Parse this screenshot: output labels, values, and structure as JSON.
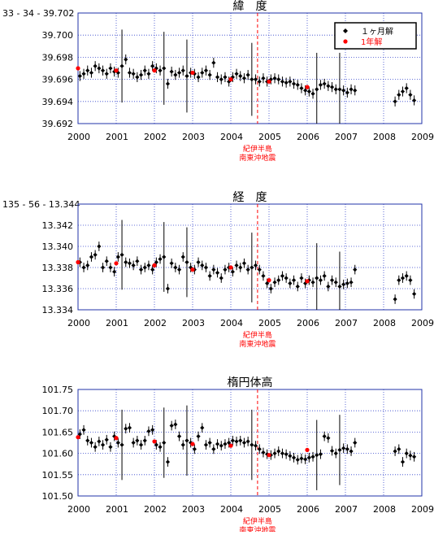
{
  "chart_data": [
    {
      "type": "scatter",
      "title": "緯　度",
      "prefix_label": "33 - 34 - 39.702",
      "x_ticks": [
        "2000",
        "2001",
        "2002",
        "2003",
        "2004",
        "2005",
        "2006",
        "2007",
        "2008",
        "2009"
      ],
      "xlim": [
        2000,
        2009
      ],
      "y_ticks": [
        "39.702",
        "39.700",
        "39.698",
        "39.696",
        "39.694",
        "39.692"
      ],
      "y_tick_values": [
        39.702,
        39.7,
        39.698,
        39.696,
        39.694,
        39.692
      ],
      "ylim": [
        39.692,
        39.702
      ],
      "grid": true,
      "legend": {
        "position": "top-right",
        "entries": [
          {
            "name": "１ヶ月解",
            "color": "#000000",
            "marker": "diamond"
          },
          {
            "name": "1年解",
            "color": "#ff0000",
            "marker": "circle"
          }
        ]
      },
      "event": {
        "x": 2004.7,
        "label_line1": "紀伊半島",
        "label_line2": "南東沖地震",
        "color": "#ff0000"
      },
      "series": [
        {
          "name": "１ヶ月解",
          "x": [
            2000.05,
            2000.15,
            2000.25,
            2000.35,
            2000.45,
            2000.55,
            2000.65,
            2000.75,
            2000.85,
            2000.95,
            2001.05,
            2001.15,
            2001.25,
            2001.35,
            2001.45,
            2001.55,
            2001.65,
            2001.75,
            2001.85,
            2001.95,
            2002.05,
            2002.15,
            2002.25,
            2002.35,
            2002.45,
            2002.55,
            2002.65,
            2002.75,
            2002.85,
            2002.95,
            2003.05,
            2003.15,
            2003.25,
            2003.35,
            2003.45,
            2003.55,
            2003.65,
            2003.75,
            2003.85,
            2003.95,
            2004.05,
            2004.15,
            2004.25,
            2004.35,
            2004.45,
            2004.55,
            2004.65,
            2004.75,
            2004.85,
            2004.95,
            2005.05,
            2005.15,
            2005.25,
            2005.35,
            2005.45,
            2005.55,
            2005.65,
            2005.75,
            2005.85,
            2005.95,
            2006.05,
            2006.15,
            2006.25,
            2006.35,
            2006.45,
            2006.55,
            2006.65,
            2006.75,
            2006.85,
            2006.95,
            2007.05,
            2007.15,
            2007.25,
            2008.3,
            2008.4,
            2008.5,
            2008.6,
            2008.7,
            2008.8
          ],
          "y": [
            39.6963,
            39.6965,
            39.6968,
            39.6966,
            39.6972,
            39.697,
            39.6968,
            39.6965,
            39.697,
            39.6967,
            39.6966,
            39.6972,
            39.6978,
            39.6966,
            39.6965,
            39.6962,
            39.6964,
            39.6968,
            39.6965,
            39.6972,
            39.697,
            39.6968,
            39.697,
            39.6956,
            39.6967,
            39.6964,
            39.6966,
            39.6968,
            39.6963,
            39.6966,
            39.6965,
            39.6962,
            39.6966,
            39.6968,
            39.6964,
            39.6975,
            39.6962,
            39.696,
            39.6962,
            39.6958,
            39.6962,
            39.6965,
            39.6963,
            39.6961,
            39.6964,
            39.696,
            39.696,
            39.6958,
            39.6961,
            39.6958,
            39.696,
            39.6961,
            39.696,
            39.6958,
            39.6957,
            39.6958,
            39.6956,
            39.6955,
            39.6952,
            39.695,
            39.6949,
            39.6947,
            39.6951,
            39.6955,
            39.6956,
            39.6954,
            39.6953,
            39.6951,
            39.6951,
            39.695,
            39.6948,
            39.6951,
            39.695,
            39.694,
            39.6946,
            39.6949,
            39.6952,
            39.6946,
            39.6941
          ]
        },
        {
          "name": "1年解",
          "x": [
            2000.0,
            2001.0,
            2002.0,
            2003.0,
            2004.0,
            2005.0,
            2006.0
          ],
          "y": [
            39.697,
            39.6968,
            39.6968,
            39.6966,
            39.696,
            39.6958,
            39.6953
          ]
        }
      ]
    },
    {
      "type": "scatter",
      "title": "経　度",
      "prefix_label": "135 - 56 - 13.344",
      "x_ticks": [
        "2000",
        "2001",
        "2002",
        "2003",
        "2004",
        "2005",
        "2006",
        "2007",
        "2008",
        "2009"
      ],
      "xlim": [
        2000,
        2009
      ],
      "y_ticks": [
        "13.344",
        "13.342",
        "13.340",
        "13.338",
        "13.336",
        "13.334"
      ],
      "y_tick_values": [
        13.344,
        13.342,
        13.34,
        13.338,
        13.336,
        13.334
      ],
      "ylim": [
        13.334,
        13.344
      ],
      "grid": true,
      "event": {
        "x": 2004.7,
        "label_line1": "紀伊半島",
        "label_line2": "南東沖地震",
        "color": "#ff0000"
      },
      "series": [
        {
          "name": "１ヶ月解",
          "x": [
            2000.05,
            2000.15,
            2000.25,
            2000.35,
            2000.45,
            2000.55,
            2000.65,
            2000.75,
            2000.85,
            2000.95,
            2001.05,
            2001.15,
            2001.25,
            2001.35,
            2001.45,
            2001.55,
            2001.65,
            2001.75,
            2001.85,
            2001.95,
            2002.05,
            2002.15,
            2002.25,
            2002.35,
            2002.45,
            2002.55,
            2002.65,
            2002.75,
            2002.85,
            2002.95,
            2003.05,
            2003.15,
            2003.25,
            2003.35,
            2003.45,
            2003.55,
            2003.65,
            2003.75,
            2003.85,
            2003.95,
            2004.05,
            2004.15,
            2004.25,
            2004.35,
            2004.45,
            2004.55,
            2004.65,
            2004.75,
            2004.85,
            2004.95,
            2005.05,
            2005.15,
            2005.25,
            2005.35,
            2005.45,
            2005.55,
            2005.65,
            2005.75,
            2005.85,
            2005.95,
            2006.05,
            2006.15,
            2006.25,
            2006.35,
            2006.45,
            2006.55,
            2006.65,
            2006.75,
            2006.85,
            2006.95,
            2007.05,
            2007.15,
            2007.25,
            2008.3,
            2008.4,
            2008.5,
            2008.6,
            2008.7,
            2008.8
          ],
          "y": [
            13.3385,
            13.338,
            13.3382,
            13.339,
            13.3392,
            13.34,
            13.338,
            13.3386,
            13.338,
            13.3376,
            13.339,
            13.3392,
            13.3385,
            13.3384,
            13.3382,
            13.3386,
            13.3378,
            13.338,
            13.3382,
            13.3378,
            13.3385,
            13.3388,
            13.339,
            13.336,
            13.3384,
            13.338,
            13.3378,
            13.339,
            13.3385,
            13.338,
            13.3378,
            13.3385,
            13.3382,
            13.338,
            13.3372,
            13.3378,
            13.3375,
            13.337,
            13.3378,
            13.338,
            13.3376,
            13.3382,
            13.338,
            13.3384,
            13.3378,
            13.338,
            13.3382,
            13.3378,
            13.3372,
            13.3365,
            13.336,
            13.3366,
            13.3368,
            13.3372,
            13.337,
            13.3365,
            13.3368,
            13.3362,
            13.337,
            13.3365,
            13.3368,
            13.3366,
            13.337,
            13.3368,
            13.3372,
            13.3362,
            13.3368,
            13.3366,
            13.3362,
            13.3364,
            13.3365,
            13.3366,
            13.3378,
            13.335,
            13.3368,
            13.337,
            13.3372,
            13.3368,
            13.3355
          ]
        },
        {
          "name": "1年解",
          "x": [
            2000.0,
            2001.0,
            2002.0,
            2003.0,
            2004.0,
            2005.0,
            2006.0
          ],
          "y": [
            13.3385,
            13.3384,
            13.3382,
            13.3378,
            13.338,
            13.3368,
            13.3367
          ]
        }
      ]
    },
    {
      "type": "scatter",
      "title": "楕円体高",
      "x_ticks": [
        "2000",
        "2001",
        "2002",
        "2003",
        "2004",
        "2005",
        "2006",
        "2007",
        "2008",
        "2009"
      ],
      "xlim": [
        2000,
        2009
      ],
      "y_ticks": [
        "101.75",
        "101.70",
        "101.65",
        "101.60",
        "101.55",
        "101.50"
      ],
      "y_tick_values": [
        101.75,
        101.7,
        101.65,
        101.6,
        101.55,
        101.5
      ],
      "ylim": [
        101.5,
        101.75
      ],
      "grid": true,
      "event": {
        "x": 2004.7,
        "label_line1": "紀伊半島",
        "label_line2": "南東沖地震",
        "color": "#ff0000"
      },
      "series": [
        {
          "name": "１ヶ月解",
          "x": [
            2000.05,
            2000.15,
            2000.25,
            2000.35,
            2000.45,
            2000.55,
            2000.65,
            2000.75,
            2000.85,
            2000.95,
            2001.05,
            2001.15,
            2001.25,
            2001.35,
            2001.45,
            2001.55,
            2001.65,
            2001.75,
            2001.85,
            2001.95,
            2002.05,
            2002.15,
            2002.25,
            2002.35,
            2002.45,
            2002.55,
            2002.65,
            2002.75,
            2002.85,
            2002.95,
            2003.05,
            2003.15,
            2003.25,
            2003.35,
            2003.45,
            2003.55,
            2003.65,
            2003.75,
            2003.85,
            2003.95,
            2004.05,
            2004.15,
            2004.25,
            2004.35,
            2004.45,
            2004.55,
            2004.65,
            2004.75,
            2004.85,
            2004.95,
            2005.05,
            2005.15,
            2005.25,
            2005.35,
            2005.45,
            2005.55,
            2005.65,
            2005.75,
            2005.85,
            2005.95,
            2006.05,
            2006.15,
            2006.25,
            2006.35,
            2006.45,
            2006.55,
            2006.65,
            2006.75,
            2006.85,
            2006.95,
            2007.05,
            2007.15,
            2007.25,
            2008.3,
            2008.4,
            2008.5,
            2008.6,
            2008.7,
            2008.8
          ],
          "y": [
            101.645,
            101.655,
            101.63,
            101.625,
            101.615,
            101.628,
            101.62,
            101.632,
            101.615,
            101.64,
            101.625,
            101.62,
            101.658,
            101.66,
            101.625,
            101.63,
            101.62,
            101.63,
            101.652,
            101.655,
            101.62,
            101.615,
            101.625,
            101.58,
            101.665,
            101.668,
            101.64,
            101.62,
            101.63,
            101.625,
            101.61,
            101.64,
            101.66,
            101.62,
            101.625,
            101.61,
            101.622,
            101.618,
            101.622,
            101.625,
            101.63,
            101.628,
            101.63,
            101.625,
            101.628,
            101.62,
            101.618,
            101.61,
            101.602,
            101.598,
            101.596,
            101.6,
            101.605,
            101.6,
            101.598,
            101.594,
            101.59,
            101.585,
            101.588,
            101.586,
            101.59,
            101.592,
            101.596,
            101.598,
            101.64,
            101.636,
            101.606,
            101.6,
            101.608,
            101.612,
            101.61,
            101.605,
            101.625,
            101.605,
            101.61,
            101.58,
            101.6,
            101.595,
            101.592
          ]
        },
        {
          "name": "1年解",
          "x": [
            2000.0,
            2001.0,
            2002.0,
            2003.0,
            2004.0,
            2005.0,
            2006.0
          ],
          "y": [
            101.638,
            101.636,
            101.628,
            101.622,
            101.618,
            101.596,
            101.608
          ]
        }
      ]
    }
  ]
}
